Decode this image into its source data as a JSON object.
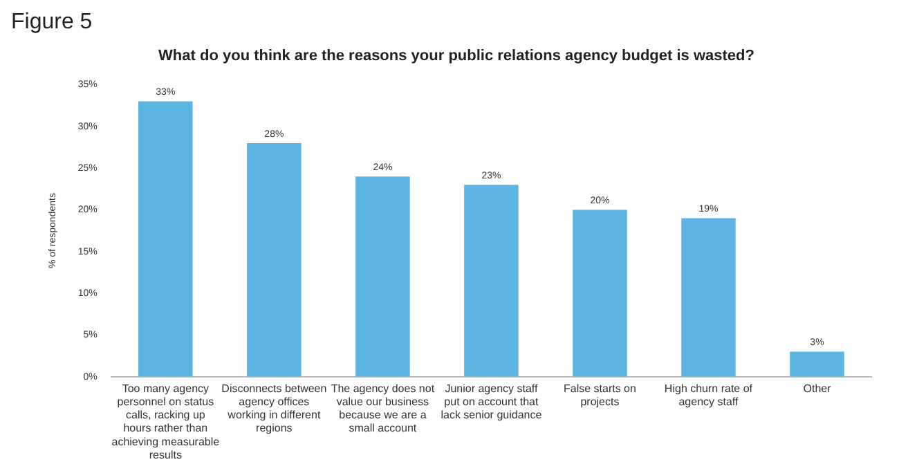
{
  "chart_data": {
    "type": "bar",
    "title": "What do you think are the reasons your public relations agency budget is wasted?",
    "annotations": [
      "Figure 5"
    ],
    "ylabel": "% of respondents",
    "categories": [
      "Too many agency personnel on status calls, racking up hours rather than achieving measurable results",
      "Disconnects between agency offices working in different regions",
      "The agency does not value our business because we are a small account",
      "Junior agency staff put on account that lack senior guidance",
      "False starts on projects",
      "High churn rate of agency staff",
      "Other"
    ],
    "values": [
      33,
      28,
      24,
      23,
      20,
      19,
      3
    ],
    "value_labels": [
      "33%",
      "28%",
      "24%",
      "23%",
      "20%",
      "19%",
      "3%"
    ],
    "color": "#5bb4e2",
    "ylim": [
      0,
      35
    ],
    "yticks": [
      {
        "value": 0,
        "label": "0%"
      },
      {
        "value": 5,
        "label": "5%"
      },
      {
        "value": 10,
        "label": "10%"
      },
      {
        "value": 15,
        "label": "15%"
      },
      {
        "value": 20,
        "label": "20%"
      },
      {
        "value": 25,
        "label": "25%"
      },
      {
        "value": 30,
        "label": "30%"
      },
      {
        "value": 35,
        "label": "35%"
      }
    ],
    "grid": false,
    "legend": false
  }
}
